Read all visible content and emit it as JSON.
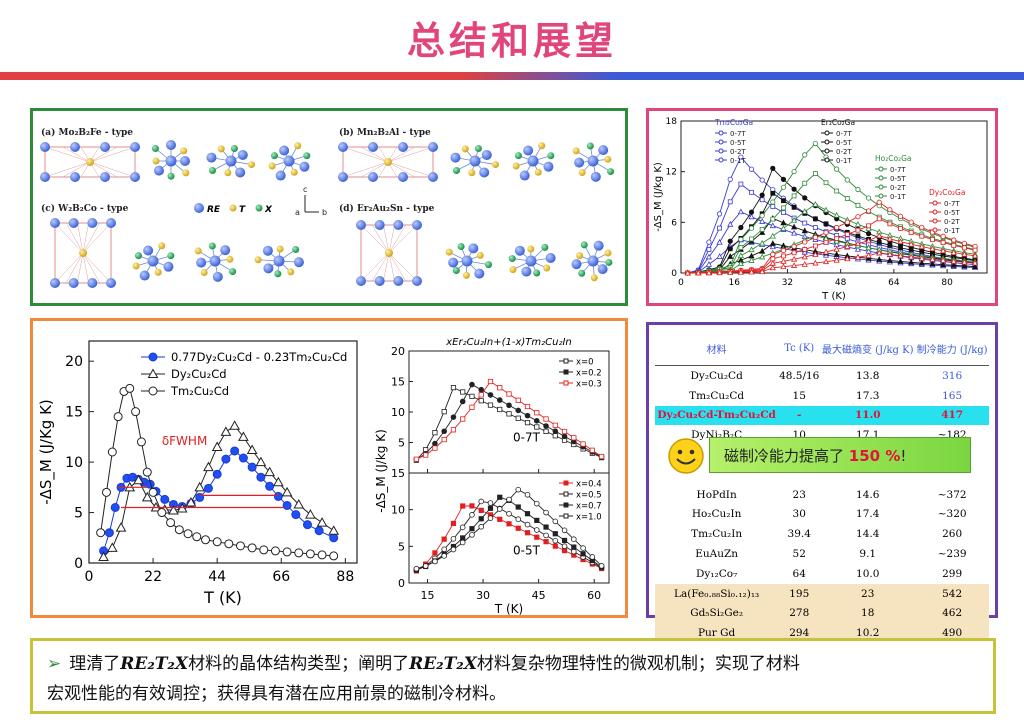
{
  "title": "总结和展望",
  "crystal": {
    "labels": [
      "(a) Mo₂B₂Fe - type",
      "(b) Mn₂B₂Al - type",
      "(c) W₂B₂Co - type",
      "(d) Er₂Au₂Sn - type"
    ],
    "legend": [
      "RE",
      "T",
      "X"
    ],
    "axes": [
      "c",
      "a",
      "b"
    ]
  },
  "chart_top": {
    "type": "line",
    "ylabel": "-ΔS_M (J/kg K)",
    "xlabel": "T (K)",
    "xticks": [
      "0",
      "16",
      "32",
      "48",
      "64",
      "80"
    ],
    "yticks": [
      "0",
      "6",
      "12",
      "18"
    ],
    "groups": [
      {
        "name": "Tm₂Co₂Ga",
        "color": "#3b3bd6",
        "fields": [
          "0-7T",
          "0-5T",
          "0-2T",
          "0-1T"
        ]
      },
      {
        "name": "Er₂Co₂Ga",
        "color": "#111111",
        "fields": [
          "0-7T",
          "0-5T",
          "0-2T",
          "0-1T"
        ]
      },
      {
        "name": "Ho₂Co₂Ga",
        "color": "#2e8b3a",
        "fields": [
          "0-7T",
          "0-5T",
          "0-2T",
          "0-1T"
        ]
      },
      {
        "name": "Dy₂Co₂Ga",
        "color": "#e02020",
        "fields": [
          "0-7T",
          "0-5T",
          "0-2T",
          "0-1T"
        ]
      }
    ],
    "chart_data": {
      "type": "line",
      "xlabel": "T (K)",
      "ylabel": "-ΔS_M (J/kg K)",
      "xlim": [
        0,
        92
      ],
      "ylim": [
        0,
        18
      ],
      "series": [
        {
          "name": "Tm₂Co₂Ga 0-7T",
          "peak_T": 16,
          "peak": 12.8
        },
        {
          "name": "Er₂Co₂Ga 0-7T",
          "peak_T": 27,
          "peak": 11.0
        },
        {
          "name": "Ho₂Co₂Ga 0-7T",
          "peak_T": 38,
          "peak": 14.5
        },
        {
          "name": "Dy₂Co₂Ga 0-7T",
          "peak_T": 58,
          "peak": 7.7
        }
      ]
    }
  },
  "chart_left": {
    "chart_data": {
      "type": "line",
      "xlabel": "T (K)",
      "ylabel": "-ΔS_M (J/Kg K)",
      "xlim": [
        0,
        92
      ],
      "ylim": [
        0,
        22
      ],
      "xticks": [
        "0",
        "22",
        "44",
        "66",
        "88"
      ],
      "yticks": [
        "0",
        "5",
        "10",
        "15",
        "20"
      ],
      "series": [
        {
          "name": "0.77Dy₂Cu₂Cd - 0.23Tm₂Cu₂Cd",
          "x": [
            5,
            7,
            9,
            11,
            13,
            15,
            17,
            19,
            21,
            23,
            26,
            29,
            32,
            35,
            38,
            41,
            44,
            47,
            50,
            53,
            56,
            59,
            62,
            65,
            68,
            71,
            75,
            79,
            84
          ],
          "y": [
            1.2,
            3,
            5.5,
            7.5,
            8.4,
            8.5,
            8.3,
            8,
            7.8,
            7.1,
            6.3,
            5.8,
            5.6,
            5.9,
            6.5,
            7.4,
            8.8,
            10.3,
            11.1,
            10.4,
            9.5,
            8.5,
            7.6,
            6.6,
            5.7,
            4.8,
            3.8,
            3.2,
            2.5
          ]
        },
        {
          "name": "Dy₂Cu₂Cd",
          "x": [
            5,
            8,
            11,
            14,
            17,
            20,
            23,
            26,
            29,
            32,
            35,
            38,
            41,
            44,
            47,
            50,
            53,
            56,
            59,
            62,
            65,
            68,
            72,
            76,
            80,
            84
          ],
          "y": [
            0.6,
            1.5,
            3.5,
            7.5,
            8.2,
            6.5,
            5.5,
            5.3,
            5.2,
            5.4,
            6,
            7.5,
            9.5,
            11.5,
            13,
            13.6,
            12.5,
            11.2,
            10,
            9,
            8,
            7,
            5.8,
            4.8,
            4,
            3.2
          ]
        },
        {
          "name": "Tm₂Cu₂Cd",
          "x": [
            4,
            6,
            8,
            10,
            12,
            14,
            16,
            18,
            20,
            22,
            25,
            28,
            31,
            34,
            37,
            40,
            44,
            48,
            52,
            56,
            60,
            64,
            68,
            72,
            76,
            80,
            84
          ],
          "y": [
            3,
            7,
            11,
            14.5,
            17,
            17.3,
            15,
            12,
            9,
            7,
            5,
            4,
            3.3,
            2.9,
            2.6,
            2.3,
            2.1,
            1.9,
            1.7,
            1.5,
            1.3,
            1.2,
            1.1,
            1,
            0.9,
            0.8,
            0.7
          ]
        }
      ],
      "annotation": "δFWHM"
    }
  },
  "chart_mid": {
    "title": "xEr₂Cu₂In+(1-x)Tm₂Cu₂In",
    "ylabel": "-ΔS_M (J/kg K)",
    "xlabel": "T (K)",
    "upper_label": "0-7T",
    "lower_label": "0-5T",
    "upper_legend": [
      "x=0",
      "x=0.2",
      "x=0.3"
    ],
    "lower_legend": [
      "x=0.4",
      "x=0.5",
      "x=0.7",
      "x=1.0"
    ],
    "xticks": [
      "15",
      "30",
      "45",
      "60"
    ],
    "upper_yticks": [
      "0",
      "5",
      "10",
      "15",
      "20"
    ],
    "lower_yticks": [
      "0",
      "5",
      "10",
      "15"
    ]
  },
  "table": {
    "headers": [
      "材料",
      "Tc (K)",
      "最大磁熵变 (J/kg K)",
      "制冷能力 (J/kg)"
    ],
    "rows": [
      {
        "m": "Dy₂Cu₂Cd",
        "tc": "48.5/16",
        "s": "13.8",
        "rc": "316",
        "style": "blue"
      },
      {
        "m": "Tm₂Cu₂Cd",
        "tc": "15",
        "s": "17.3",
        "rc": "165",
        "style": "blue"
      },
      {
        "m": "Dy₂Cu₂Cd-Tm₂Cu₂Cd",
        "tc": "-",
        "s": "11.0",
        "rc": "417",
        "style": "hl"
      },
      {
        "m": "DyNi₂B₂C",
        "tc": "10",
        "s": "17.1",
        "rc": "~182",
        "style": ""
      },
      {
        "m": "",
        "tc": "",
        "s": "",
        "rc": "",
        "style": ""
      },
      {
        "m": "",
        "tc": "",
        "s": "",
        "rc": "",
        "style": ""
      },
      {
        "m": "HoPdIn",
        "tc": "23",
        "s": "14.6",
        "rc": "~372",
        "style": ""
      },
      {
        "m": "Ho₂Cu₂In",
        "tc": "30",
        "s": "17.4",
        "rc": "~320",
        "style": ""
      },
      {
        "m": "Tm₂Cu₂In",
        "tc": "39.4",
        "s": "14.4",
        "rc": "260",
        "style": ""
      },
      {
        "m": "EuAuZn",
        "tc": "52",
        "s": "9.1",
        "rc": "~239",
        "style": ""
      },
      {
        "m": "Dy₁₂Co₇",
        "tc": "64",
        "s": "10.0",
        "rc": "299",
        "style": ""
      },
      {
        "m": "La(Fe₀.₈₈Si₀.₁₂)₁₃",
        "tc": "195",
        "s": "23",
        "rc": "542",
        "style": "beige"
      },
      {
        "m": "Gd₅Si₂Ge₂",
        "tc": "278",
        "s": "18",
        "rc": "462",
        "style": "beige"
      },
      {
        "m": "Pur Gd",
        "tc": "294",
        "s": "10.2",
        "rc": "490",
        "style": "beige"
      }
    ],
    "callout_text": "磁制冷能力提高了",
    "callout_pct": "150 %",
    "callout_end": "!"
  },
  "summary": {
    "line1_a": "理清了",
    "formula": "RE₂T₂X",
    "line1_b": "材料的晶体结构类型；阐明了",
    "line1_c": "材料复杂物理特性的微观机制；实现了材料",
    "line2": "宏观性能的有效调控；获得具有潜在应用前景的磁制冷材料。"
  }
}
